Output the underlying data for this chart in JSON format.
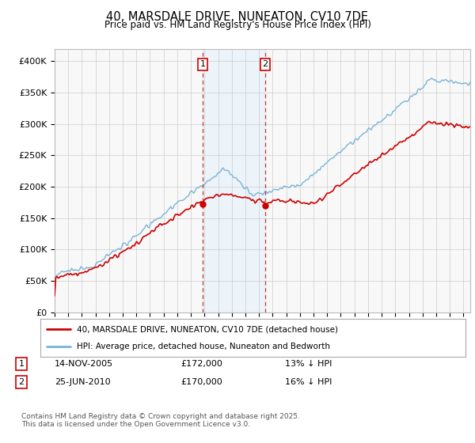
{
  "title": "40, MARSDALE DRIVE, NUNEATON, CV10 7DE",
  "subtitle": "Price paid vs. HM Land Registry's House Price Index (HPI)",
  "ylabel_ticks": [
    "£0",
    "£50K",
    "£100K",
    "£150K",
    "£200K",
    "£250K",
    "£300K",
    "£350K",
    "£400K"
  ],
  "ytick_values": [
    0,
    50000,
    100000,
    150000,
    200000,
    250000,
    300000,
    350000,
    400000
  ],
  "ylim": [
    0,
    420000
  ],
  "hpi_color": "#7ab4d8",
  "price_color": "#cc0000",
  "year1": 2005.875,
  "year2": 2010.458,
  "legend_line1": "40, MARSDALE DRIVE, NUNEATON, CV10 7DE (detached house)",
  "legend_line2": "HPI: Average price, detached house, Nuneaton and Bedworth",
  "footer": "Contains HM Land Registry data © Crown copyright and database right 2025.\nThis data is licensed under the Open Government Licence v3.0.",
  "background_color": "#ffffff"
}
